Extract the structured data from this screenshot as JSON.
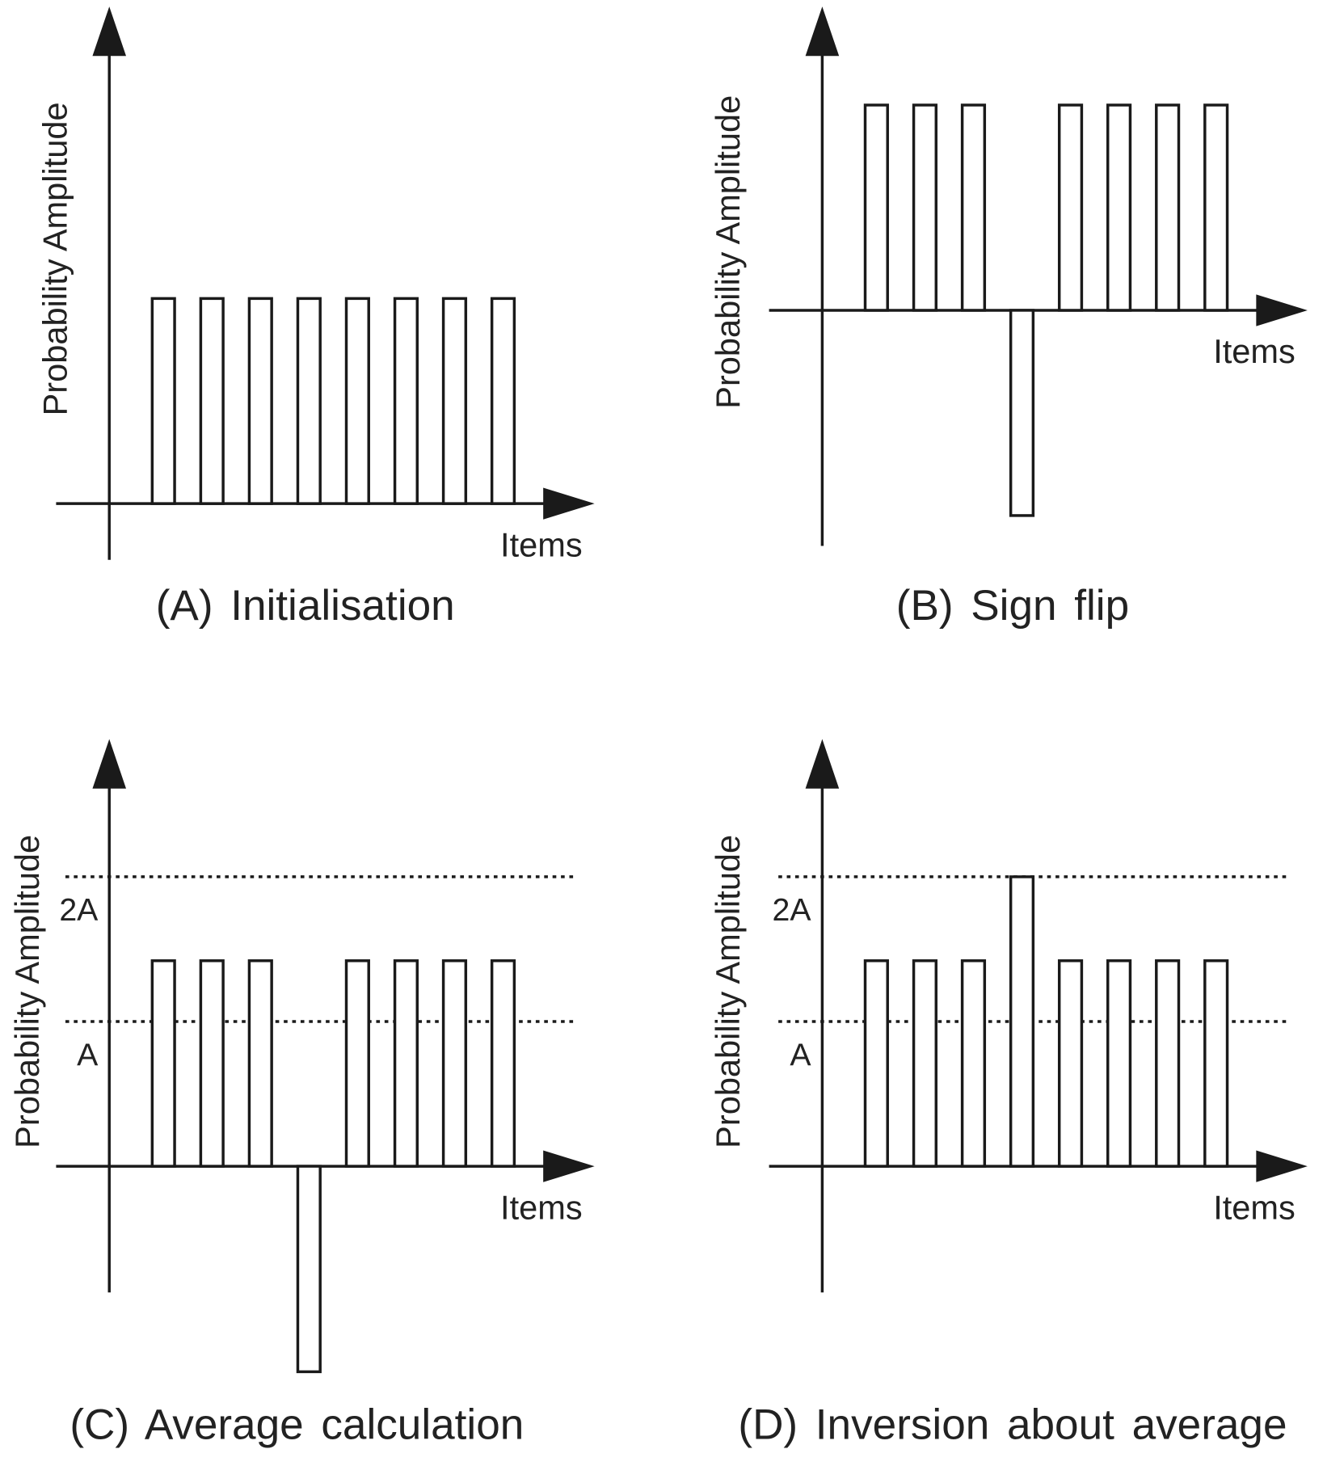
{
  "chart_data": [
    {
      "type": "bar",
      "title": "(A) Initialisation",
      "y_label": "Probability Amplitude",
      "x_label": "Items",
      "categories": [
        null,
        null,
        null,
        null,
        null,
        null,
        null,
        null
      ],
      "values": [
        1.42,
        1.42,
        1.42,
        1.42,
        1.42,
        1.42,
        1.42,
        1.42
      ],
      "ylim": [
        -0.39,
        3.39
      ],
      "yticks": []
    },
    {
      "type": "bar",
      "title": "(B) Sign flip",
      "y_label": "Probability Amplitude",
      "x_label": "Items",
      "categories": [
        null,
        null,
        null,
        null,
        null,
        null,
        null,
        null
      ],
      "values": [
        1.42,
        1.42,
        1.42,
        -1.42,
        1.42,
        1.42,
        1.42,
        1.42
      ],
      "ylim": [
        -1.63,
        2.05
      ],
      "yticks": []
    },
    {
      "type": "bar",
      "title": "(C) Average calculation",
      "y_label": "Probability Amplitude",
      "x_label": "Items",
      "categories": [
        null,
        null,
        null,
        null,
        null,
        null,
        null,
        null
      ],
      "values": [
        1.42,
        1.42,
        1.42,
        -1.42,
        1.42,
        1.42,
        1.42,
        1.42
      ],
      "ylim": [
        -1.42,
        2.9
      ],
      "yticks": [
        {
          "value": 1,
          "label": "A"
        },
        {
          "value": 2,
          "label": "2A"
        }
      ],
      "grid": true
    },
    {
      "type": "bar",
      "title": "(D) Inversion about average",
      "y_label": "Probability Amplitude",
      "x_label": "Items",
      "categories": [
        null,
        null,
        null,
        null,
        null,
        null,
        null,
        null
      ],
      "values": [
        1.42,
        1.42,
        1.42,
        2,
        1.42,
        1.42,
        1.42,
        1.42
      ],
      "ylim": [
        -1.42,
        2.9
      ],
      "yticks": [
        {
          "value": 1,
          "label": "A"
        },
        {
          "value": 2,
          "label": "2A"
        }
      ],
      "grid": true
    }
  ]
}
